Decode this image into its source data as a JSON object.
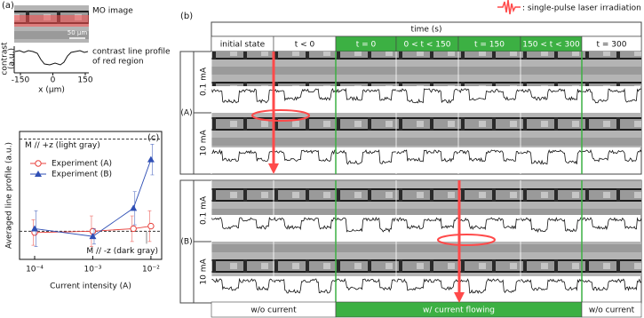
{
  "panel_a": {
    "label": "(a)",
    "image_label": "MO image",
    "scale_bar": "50 µm",
    "profile_label": [
      "contrast line profile",
      "of red region"
    ],
    "y_label": [
      "contrast",
      "(a.u.)"
    ],
    "x_label": "x (µm)",
    "xlim": [
      -150,
      150
    ],
    "xticks": [
      -150,
      0,
      150
    ]
  },
  "panel_b": {
    "label": "(b)",
    "legend_text": ": single-pulse laser irradiation",
    "header": "time (s)",
    "columns": [
      "initial state",
      "t < 0",
      "t = 0",
      "0 < t < 150",
      "t = 150",
      "150 < t < 300",
      "t = 300"
    ],
    "groups": [
      {
        "label": "(A)",
        "rows": [
          "0.1 mA",
          "10 mA"
        ]
      },
      {
        "label": "(B)",
        "rows": [
          "0.1 mA",
          "10 mA"
        ]
      }
    ],
    "footer": [
      "w/o current",
      "w/ current flowing",
      "w/o current"
    ]
  },
  "chart_data": {
    "type": "line",
    "label": "(c)",
    "x_label": "Current intensity (A)",
    "y_label": "Averaged line profile (a.u.)",
    "log_x": true,
    "xlim": [
      5.5e-05,
      0.0153
    ],
    "ylim": [
      0,
      1
    ],
    "xticks": [
      {
        "value": 0.0001,
        "label": "10⁻⁴"
      },
      {
        "value": 0.001,
        "label": "10⁻³"
      },
      {
        "value": 0.01,
        "label": "10⁻²"
      }
    ],
    "reference_lines": [
      {
        "value": 0.94,
        "label": "M // +z (light gray)"
      },
      {
        "value": 0.22,
        "label": "M // -z (dark gray)"
      }
    ],
    "series": [
      {
        "name": "Experiment (A)",
        "color": "#e8413c",
        "marker": "circle",
        "x": [
          0.0001,
          0.001,
          0.005,
          0.01
        ],
        "values": [
          0.21,
          0.22,
          0.24,
          0.26
        ],
        "errors": [
          0.1,
          0.12,
          0.1,
          0.12
        ]
      },
      {
        "name": "Experiment (B)",
        "color": "#2f4fb5",
        "marker": "triangle",
        "x": [
          0.0001,
          0.001,
          0.005,
          0.01
        ],
        "values": [
          0.24,
          0.18,
          0.4,
          0.78
        ],
        "errors": [
          0.14,
          0.06,
          0.13,
          0.12
        ]
      }
    ]
  }
}
